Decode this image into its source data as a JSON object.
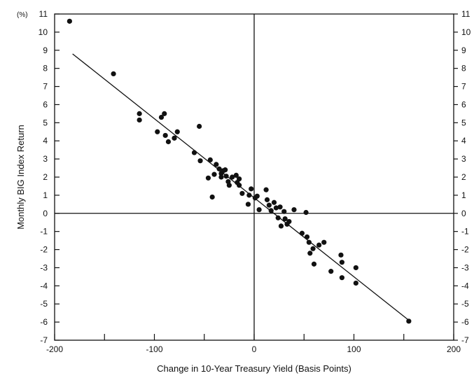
{
  "chart_data": {
    "type": "scatter",
    "title": "",
    "xlabel": "Change in 10-Year Treasury Yield (Basis Points)",
    "ylabel": "Monthly BIG Index Return",
    "y_unit": "(%)",
    "xlim": [
      -200,
      200
    ],
    "ylim": [
      -7,
      11
    ],
    "x_ticks": [
      -200,
      -100,
      0,
      100,
      200
    ],
    "x_minor_ticks": [
      -150,
      -50,
      50,
      150
    ],
    "y_ticks": [
      -7,
      -6,
      -5,
      -4,
      -3,
      -2,
      -1,
      0,
      1,
      2,
      3,
      4,
      5,
      6,
      7,
      8,
      9,
      10,
      11
    ],
    "right_axis_ticks": true,
    "grid": false,
    "reference_lines": {
      "x": 0,
      "y": 0
    },
    "trendline": {
      "x": [
        -182,
        155
      ],
      "y": [
        8.8,
        -5.9
      ]
    },
    "series": [
      {
        "points": [
          [
            -185,
            10.6
          ],
          [
            -141,
            7.7
          ],
          [
            -115,
            5.5
          ],
          [
            -115,
            5.15
          ],
          [
            -90,
            5.5
          ],
          [
            -93,
            5.3
          ],
          [
            -97,
            4.5
          ],
          [
            -89,
            4.3
          ],
          [
            -86,
            3.95
          ],
          [
            -77,
            4.5
          ],
          [
            -80,
            4.15
          ],
          [
            -60,
            3.35
          ],
          [
            -55,
            4.8
          ],
          [
            -54,
            2.9
          ],
          [
            -44,
            2.95
          ],
          [
            -38,
            2.7
          ],
          [
            -40,
            2.15
          ],
          [
            -46,
            1.95
          ],
          [
            -42,
            0.9
          ],
          [
            -35,
            2.45
          ],
          [
            -33,
            2.2
          ],
          [
            -31,
            2.35
          ],
          [
            -29,
            2.4
          ],
          [
            -28,
            2.05
          ],
          [
            -33,
            2.0
          ],
          [
            -26,
            1.75
          ],
          [
            -25,
            1.55
          ],
          [
            -22,
            2.0
          ],
          [
            -18,
            2.1
          ],
          [
            -15,
            1.9
          ],
          [
            -17,
            1.7
          ],
          [
            -15,
            1.55
          ],
          [
            -12,
            1.1
          ],
          [
            -5,
            1.0
          ],
          [
            -6,
            0.5
          ],
          [
            -3,
            1.35
          ],
          [
            1,
            0.85
          ],
          [
            3,
            0.95
          ],
          [
            5,
            0.2
          ],
          [
            12,
            1.3
          ],
          [
            13,
            0.75
          ],
          [
            15,
            0.45
          ],
          [
            17,
            0.15
          ],
          [
            20,
            0.6
          ],
          [
            22,
            0.3
          ],
          [
            24,
            -0.25
          ],
          [
            26,
            0.35
          ],
          [
            27,
            -0.7
          ],
          [
            30,
            0.1
          ],
          [
            31,
            -0.3
          ],
          [
            33,
            -0.6
          ],
          [
            35,
            -0.45
          ],
          [
            40,
            0.2
          ],
          [
            48,
            -1.1
          ],
          [
            52,
            0.05
          ],
          [
            53,
            -1.3
          ],
          [
            55,
            -1.6
          ],
          [
            56,
            -2.2
          ],
          [
            59,
            -1.95
          ],
          [
            60,
            -2.8
          ],
          [
            65,
            -1.75
          ],
          [
            70,
            -1.6
          ],
          [
            77,
            -3.2
          ],
          [
            87,
            -2.3
          ],
          [
            88,
            -2.7
          ],
          [
            88,
            -3.55
          ],
          [
            102,
            -3.0
          ],
          [
            102,
            -3.85
          ],
          [
            155,
            -5.95
          ]
        ]
      }
    ]
  }
}
